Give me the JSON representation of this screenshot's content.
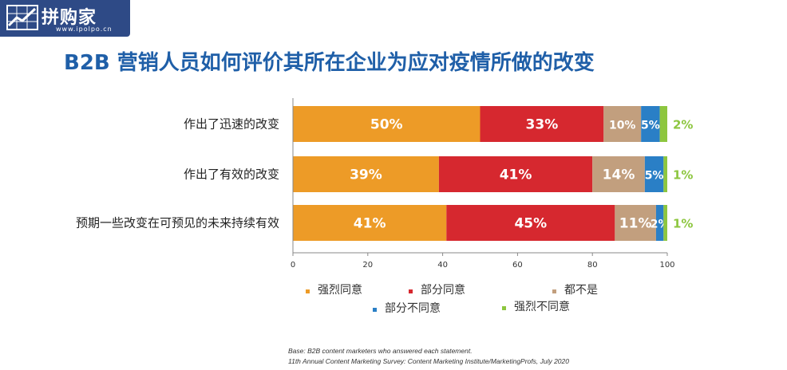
{
  "logo": {
    "title": "拼购家",
    "url": "www.ipolpo.cn"
  },
  "title": "B2B 营销人员如何评价其所在企业为应对疫情所做的改变",
  "chart_data": {
    "type": "bar",
    "orientation": "horizontal",
    "stacked": true,
    "categories": [
      "作出了迅速的改变",
      "作出了有效的改变",
      "预期一些改变在可预见的未来持续有效"
    ],
    "series": [
      {
        "name": "强烈同意",
        "color": "#ed9b27",
        "values": [
          50,
          39,
          41
        ]
      },
      {
        "name": "部分同意",
        "color": "#d6282f",
        "values": [
          33,
          41,
          45
        ]
      },
      {
        "name": "都不是",
        "color": "#c29f7e",
        "values": [
          10,
          14,
          11
        ]
      },
      {
        "name": "部分不同意",
        "color": "#2a7fc6",
        "values": [
          5,
          5,
          2
        ]
      },
      {
        "name": "强烈不同意",
        "color": "#8dc63f",
        "values": [
          2,
          1,
          1
        ]
      }
    ],
    "xlim": [
      0,
      100
    ],
    "xticks": [
      0,
      20,
      40,
      60,
      80,
      100
    ],
    "legend": "bottom"
  },
  "footnote": {
    "line1": "Base: B2B content marketers who answered each statement.",
    "line2": "11th Annual Content Marketing Survey: Content Marketing Institute/MarketingProfs, July 2020"
  }
}
